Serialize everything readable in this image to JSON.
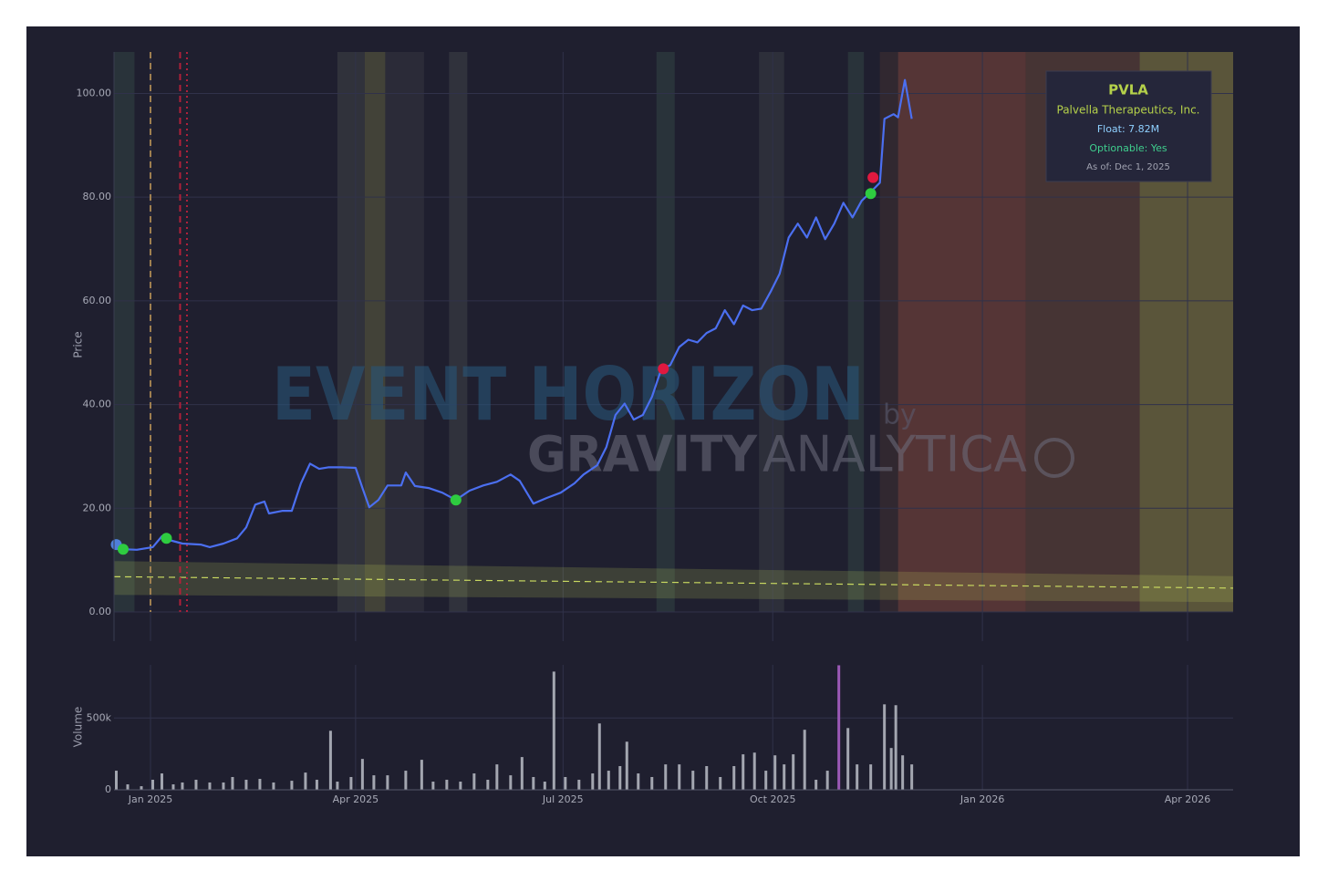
{
  "chart_data": [
    {
      "type": "line",
      "xlim": [
        "2024-12-16",
        "2026-04-21"
      ],
      "ylim": [
        0,
        108
      ],
      "yticks": [
        {
          "value": 0,
          "label": "0.00"
        },
        {
          "value": 20,
          "label": "20.00"
        },
        {
          "value": 40,
          "label": "40.00"
        },
        {
          "value": 60,
          "label": "60.00"
        },
        {
          "value": 80,
          "label": "80.00"
        },
        {
          "value": 100,
          "label": "100.00"
        }
      ],
      "y_label": "Price",
      "grid": true,
      "series": [
        {
          "color": "#4b6ff0",
          "x": [
            "2024-12-17",
            "2024-12-20",
            "2024-12-26",
            "2025-01-02",
            "2025-01-06",
            "2025-01-09",
            "2025-01-15",
            "2025-01-23",
            "2025-01-27",
            "2025-02-02",
            "2025-02-08",
            "2025-02-12",
            "2025-02-16",
            "2025-02-20",
            "2025-02-22",
            "2025-02-28",
            "2025-03-04",
            "2025-03-08",
            "2025-03-12",
            "2025-03-16",
            "2025-03-20",
            "2025-03-26",
            "2025-04-01",
            "2025-04-04",
            "2025-04-07",
            "2025-04-11",
            "2025-04-15",
            "2025-04-21",
            "2025-04-23",
            "2025-04-27",
            "2025-05-03",
            "2025-05-09",
            "2025-05-15",
            "2025-05-21",
            "2025-05-27",
            "2025-06-02",
            "2025-06-08",
            "2025-06-12",
            "2025-06-18",
            "2025-06-24",
            "2025-06-30",
            "2025-07-06",
            "2025-07-10",
            "2025-07-16",
            "2025-07-20",
            "2025-07-24",
            "2025-07-28",
            "2025-08-01",
            "2025-08-05",
            "2025-08-09",
            "2025-08-13",
            "2025-08-17",
            "2025-08-21",
            "2025-08-25",
            "2025-08-29",
            "2025-09-02",
            "2025-09-06",
            "2025-09-10",
            "2025-09-14",
            "2025-09-18",
            "2025-09-22",
            "2025-09-26",
            "2025-09-30",
            "2025-10-04",
            "2025-10-08",
            "2025-10-12",
            "2025-10-16",
            "2025-10-20",
            "2025-10-24",
            "2025-10-28",
            "2025-11-01",
            "2025-11-05",
            "2025-11-09",
            "2025-11-13",
            "2025-11-17",
            "2025-11-19",
            "2025-11-23",
            "2025-11-25",
            "2025-11-28",
            "2025-12-01"
          ],
          "values": [
            13.0,
            12.1,
            12.0,
            12.5,
            14.6,
            13.9,
            13.2,
            13.0,
            12.5,
            13.2,
            14.2,
            16.3,
            20.7,
            21.3,
            19.0,
            19.5,
            19.5,
            24.8,
            28.6,
            27.6,
            27.9,
            27.9,
            27.8,
            23.9,
            20.2,
            21.6,
            24.4,
            24.4,
            26.9,
            24.3,
            23.9,
            23.0,
            21.6,
            23.4,
            24.4,
            25.1,
            26.5,
            25.3,
            20.9,
            22.0,
            23.0,
            24.8,
            26.5,
            28.3,
            31.8,
            38.0,
            40.2,
            37.1,
            38.0,
            41.5,
            46.7,
            47.6,
            51.1,
            52.5,
            52.0,
            53.8,
            54.7,
            58.2,
            55.5,
            59.1,
            58.2,
            58.5,
            61.7,
            65.2,
            72.2,
            74.9,
            72.2,
            76.1,
            71.9,
            74.9,
            78.9,
            76.1,
            79.3,
            81.0,
            82.8,
            95.1,
            96.0,
            95.4,
            102.6,
            95.1
          ]
        }
      ],
      "markers": [
        {
          "x": "2024-12-17",
          "value": 13.0,
          "color": "#4f7fd9"
        },
        {
          "x": "2024-12-20",
          "value": 12.1,
          "color": "#2ecc40"
        },
        {
          "x": "2025-01-08",
          "value": 14.2,
          "color": "#2ecc40"
        },
        {
          "x": "2025-05-15",
          "value": 21.6,
          "color": "#2ecc40"
        },
        {
          "x": "2025-08-14",
          "value": 46.9,
          "color": "#e0193f"
        },
        {
          "x": "2025-11-13",
          "value": 80.7,
          "color": "#2ecc40"
        },
        {
          "x": "2025-11-14",
          "value": 83.8,
          "color": "#e0193f"
        }
      ],
      "vlines": [
        {
          "x": "2025-01-01",
          "color": "#a08050",
          "dash": "dash"
        },
        {
          "x": "2025-01-14",
          "color": "#b0203a",
          "dash": "dash"
        },
        {
          "x": "2025-01-17",
          "color": "#b0203a",
          "dash": "dot"
        }
      ],
      "trend": {
        "x": [
          "2024-12-16",
          "2026-04-21"
        ],
        "values": [
          6.8,
          4.6
        ],
        "upper": [
          9.8,
          6.9
        ],
        "lower": [
          3.3,
          1.9
        ],
        "color": "#c8d860"
      },
      "bands": [
        {
          "x0": "2024-12-16",
          "x1": "2024-12-25",
          "color": "rgba(60,90,80,0.35)"
        },
        {
          "x0": "2025-03-24",
          "x1": "2025-04-05",
          "color": "rgba(90,95,90,0.3)"
        },
        {
          "x0": "2025-04-05",
          "x1": "2025-04-14",
          "color": "rgba(120,120,70,0.4)"
        },
        {
          "x0": "2025-04-14",
          "x1": "2025-05-01",
          "color": "rgba(80,80,85,0.25)"
        },
        {
          "x0": "2025-05-12",
          "x1": "2025-05-20",
          "color": "rgba(80,85,85,0.35)"
        },
        {
          "x0": "2025-08-11",
          "x1": "2025-08-19",
          "color": "rgba(60,90,80,0.35)"
        },
        {
          "x0": "2025-09-25",
          "x1": "2025-10-06",
          "color": "rgba(80,85,85,0.3)"
        },
        {
          "x0": "2025-11-03",
          "x1": "2025-11-10",
          "color": "rgba(60,90,80,0.35)"
        },
        {
          "x0": "2025-11-17",
          "x1": "2025-11-25",
          "color": "rgba(70,50,50,0.45)"
        },
        {
          "x0": "2025-11-25",
          "x1": "2026-01-20",
          "color": "rgba(150,80,65,0.45)"
        },
        {
          "x0": "2026-01-20",
          "x1": "2026-03-11",
          "color": "rgba(130,85,60,0.4)"
        },
        {
          "x0": "2026-03-11",
          "x1": "2026-04-21",
          "color": "rgba(150,140,70,0.5)"
        }
      ],
      "watermark": {
        "main": "EVENT HORIZON",
        "by": "by",
        "brand_bold": "GRAVITY",
        "brand_light": "ANALYTICA"
      },
      "info": {
        "ticker": "PVLA",
        "company": "Palvella Therapeutics, Inc.",
        "float": "Float: 7.82M",
        "optionable": "Optionable: Yes",
        "as_of": "As of: Dec 1, 2025"
      }
    },
    {
      "type": "bar",
      "xlim": [
        "2024-12-16",
        "2026-04-21"
      ],
      "xticks": [
        {
          "value": "2025-01-01",
          "label": "Jan 2025"
        },
        {
          "value": "2025-04-01",
          "label": "Apr 2025"
        },
        {
          "value": "2025-07-01",
          "label": "Jul 2025"
        },
        {
          "value": "2025-10-01",
          "label": "Oct 2025"
        },
        {
          "value": "2026-01-01",
          "label": "Jan 2026"
        },
        {
          "value": "2026-04-01",
          "label": "Apr 2026"
        }
      ],
      "ylim": [
        0,
        870000
      ],
      "yticks": [
        0,
        {
          "value": 500000,
          "label": "500k"
        }
      ],
      "y_label": "Volume",
      "grid": true,
      "series": [
        {
          "color": "#a3a6b0",
          "x": [
            "2024-12-17",
            "2024-12-22",
            "2024-12-28",
            "2025-01-02",
            "2025-01-06",
            "2025-01-11",
            "2025-01-15",
            "2025-01-21",
            "2025-01-27",
            "2025-02-02",
            "2025-02-06",
            "2025-02-12",
            "2025-02-18",
            "2025-02-24",
            "2025-03-04",
            "2025-03-10",
            "2025-03-15",
            "2025-03-21",
            "2025-03-24",
            "2025-03-30",
            "2025-04-04",
            "2025-04-09",
            "2025-04-15",
            "2025-04-23",
            "2025-04-30",
            "2025-05-05",
            "2025-05-11",
            "2025-05-17",
            "2025-05-23",
            "2025-05-29",
            "2025-06-02",
            "2025-06-08",
            "2025-06-13",
            "2025-06-18",
            "2025-06-23",
            "2025-06-27",
            "2025-07-02",
            "2025-07-08",
            "2025-07-14",
            "2025-07-17",
            "2025-07-21",
            "2025-07-26",
            "2025-07-29",
            "2025-08-03",
            "2025-08-09",
            "2025-08-15",
            "2025-08-21",
            "2025-08-27",
            "2025-09-02",
            "2025-09-08",
            "2025-09-14",
            "2025-09-18",
            "2025-09-23",
            "2025-09-28",
            "2025-10-02",
            "2025-10-06",
            "2025-10-10",
            "2025-10-15",
            "2025-10-20",
            "2025-10-25",
            "2025-11-03",
            "2025-11-07",
            "2025-11-13",
            "2025-11-19",
            "2025-11-22",
            "2025-11-24",
            "2025-11-27",
            "2025-12-01"
          ],
          "values": [
            133000,
            38000,
            25000,
            70000,
            114000,
            38000,
            51000,
            70000,
            51000,
            51000,
            89000,
            70000,
            76000,
            51000,
            63000,
            120000,
            70000,
            411000,
            57000,
            89000,
            215000,
            101000,
            101000,
            133000,
            209000,
            57000,
            70000,
            57000,
            114000,
            70000,
            177000,
            101000,
            228000,
            89000,
            57000,
            823000,
            89000,
            70000,
            114000,
            462000,
            133000,
            165000,
            335000,
            114000,
            89000,
            177000,
            177000,
            133000,
            165000,
            89000,
            165000,
            247000,
            259000,
            133000,
            240000,
            177000,
            247000,
            418000,
            70000,
            133000,
            430000,
            177000,
            177000,
            595000,
            291000,
            589000,
            240000,
            177000
          ]
        },
        {
          "color": "#9b59b6",
          "x": [
            "2025-10-30"
          ],
          "values": [
            867000
          ]
        }
      ]
    }
  ]
}
